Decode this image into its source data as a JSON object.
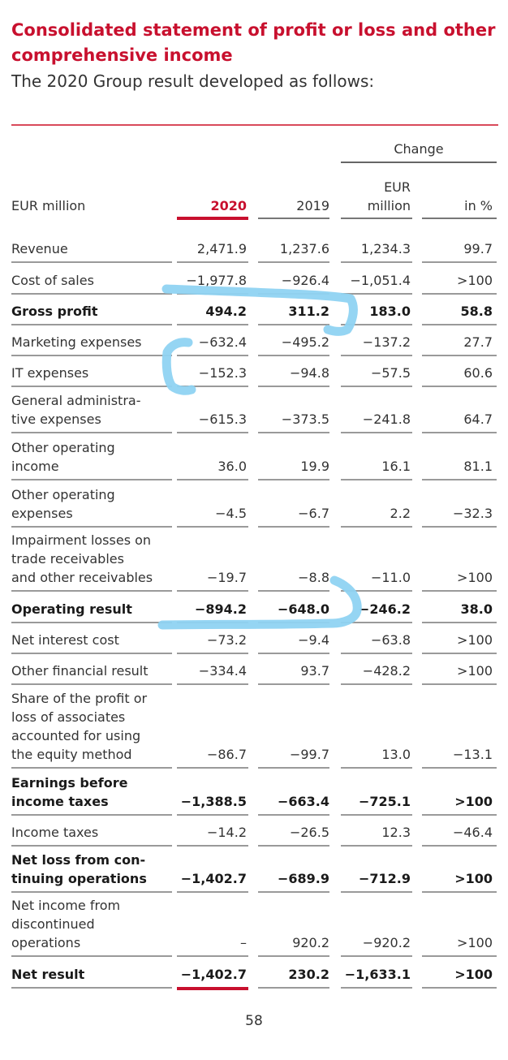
{
  "header": {
    "title": "Consolidated statement of profit or loss and other\ncomprehensive income",
    "subtitle": "The 2020 Group result developed as follows:"
  },
  "table": {
    "columns": {
      "label": "EUR million",
      "y2020": "2020",
      "y2019": "2019",
      "change_group": "Change",
      "change_eur": "EUR\nmillion",
      "change_pct": "in %"
    },
    "rows": [
      {
        "label": "Revenue",
        "v2020": "2,471.9",
        "v2019": "1,237.6",
        "chg": "1,234.3",
        "pct": "99.7",
        "bold": false
      },
      {
        "label": "Cost of sales",
        "v2020": "−1,977.8",
        "v2019": "−926.4",
        "chg": "−1,051.4",
        "pct": ">100",
        "bold": false
      },
      {
        "label": "Gross profit",
        "v2020": "494.2",
        "v2019": "311.2",
        "chg": "183.0",
        "pct": "58.8",
        "bold": true
      },
      {
        "label": "Marketing expenses",
        "v2020": "−632.4",
        "v2019": "−495.2",
        "chg": "−137.2",
        "pct": "27.7",
        "bold": false
      },
      {
        "label": "IT expenses",
        "v2020": "−152.3",
        "v2019": "−94.8",
        "chg": "−57.5",
        "pct": "60.6",
        "bold": false
      },
      {
        "label": "General administra-\ntive expenses",
        "v2020": "−615.3",
        "v2019": "−373.5",
        "chg": "−241.8",
        "pct": "64.7",
        "bold": false
      },
      {
        "label": "Other operating\nincome",
        "v2020": "36.0",
        "v2019": "19.9",
        "chg": "16.1",
        "pct": "81.1",
        "bold": false
      },
      {
        "label": "Other operating\nexpenses",
        "v2020": "−4.5",
        "v2019": "−6.7",
        "chg": "2.2",
        "pct": "−32.3",
        "bold": false
      },
      {
        "label": "Impairment losses on\ntrade receivables\nand other receivables",
        "v2020": "−19.7",
        "v2019": "−8.8",
        "chg": "−11.0",
        "pct": ">100",
        "bold": false
      },
      {
        "label": "Operating result",
        "v2020": "−894.2",
        "v2019": "−648.0",
        "chg": "−246.2",
        "pct": "38.0",
        "bold": true
      },
      {
        "label": "Net interest cost",
        "v2020": "−73.2",
        "v2019": "−9.4",
        "chg": "−63.8",
        "pct": ">100",
        "bold": false
      },
      {
        "label": "Other financial result",
        "v2020": "−334.4",
        "v2019": "93.7",
        "chg": "−428.2",
        "pct": ">100",
        "bold": false
      },
      {
        "label": "Share of the profit or\nloss of associates\naccounted for using\nthe equity method",
        "v2020": "−86.7",
        "v2019": "−99.7",
        "chg": "13.0",
        "pct": "−13.1",
        "bold": false
      },
      {
        "label": "Earnings before\nincome taxes",
        "v2020": "−1,388.5",
        "v2019": "−663.4",
        "chg": "−725.1",
        "pct": ">100",
        "bold": true
      },
      {
        "label": "Income taxes",
        "v2020": "−14.2",
        "v2019": "−26.5",
        "chg": "12.3",
        "pct": "−46.4",
        "bold": false
      },
      {
        "label": "Net loss from con-\ntinuing operations",
        "v2020": "−1,402.7",
        "v2019": "−689.9",
        "chg": "−712.9",
        "pct": ">100",
        "bold": true
      },
      {
        "label": "Net income from\ndiscontinued\noperations",
        "v2020": "–",
        "v2019": "920.2",
        "chg": "−920.2",
        "pct": ">100",
        "bold": false
      },
      {
        "label": "Net result",
        "v2020": "−1,402.7",
        "v2019": "230.2",
        "chg": "−1,633.1",
        "pct": ">100",
        "bold": true
      }
    ]
  },
  "page_number": "58",
  "colors": {
    "accent": "#c8102e",
    "highlighter": "#8fd3f2"
  }
}
